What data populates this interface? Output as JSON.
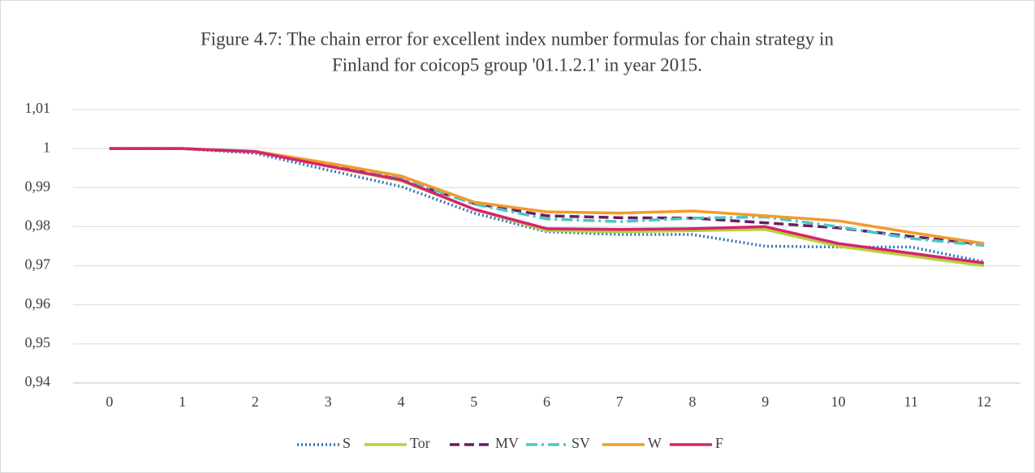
{
  "chart_data": {
    "type": "line",
    "title_lines": [
      "Figure 4.7: The chain error for excellent index number formulas for chain strategy in",
      "Finland for coicop5 group '01.1.2.1' in year 2015."
    ],
    "categories": [
      "0",
      "1",
      "2",
      "3",
      "4",
      "5",
      "6",
      "7",
      "8",
      "9",
      "10",
      "11",
      "12"
    ],
    "ylim": [
      0.94,
      1.01
    ],
    "yticks": [
      {
        "value": 0.94,
        "label": "0,94"
      },
      {
        "value": 0.95,
        "label": "0,95"
      },
      {
        "value": 0.96,
        "label": "0,96"
      },
      {
        "value": 0.97,
        "label": "0,97"
      },
      {
        "value": 0.98,
        "label": "0,98"
      },
      {
        "value": 0.99,
        "label": "0,99"
      },
      1,
      {
        "value": 1.01,
        "label": "1,01"
      }
    ],
    "grid": true,
    "legend": "bottom",
    "series": [
      {
        "name": "S",
        "color": "#2e75b6",
        "dash": "dotted",
        "values": [
          1,
          1,
          0.9988,
          0.9945,
          0.9903,
          0.9835,
          0.9787,
          0.978,
          0.978,
          0.975,
          0.9748,
          0.9748,
          0.971
        ]
      },
      {
        "name": "Tor",
        "color": "#b4d23c",
        "dash": "solid",
        "values": [
          1,
          1,
          0.9992,
          0.9955,
          0.9918,
          0.9845,
          0.979,
          0.9787,
          0.979,
          0.9793,
          0.975,
          0.9725,
          0.97
        ]
      },
      {
        "name": "MV",
        "color": "#6a1c63",
        "dash": "dashed",
        "values": [
          1,
          1,
          0.9992,
          0.996,
          0.992,
          0.986,
          0.9828,
          0.9823,
          0.9822,
          0.981,
          0.9797,
          0.9775,
          0.9755
        ]
      },
      {
        "name": "SV",
        "color": "#4bc6c4",
        "dash": "dashdot",
        "values": [
          1,
          1,
          0.9993,
          0.996,
          0.9925,
          0.9858,
          0.982,
          0.9813,
          0.9822,
          0.9825,
          0.98,
          0.977,
          0.9752
        ]
      },
      {
        "name": "W",
        "color": "#f39a2b",
        "dash": "solid",
        "values": [
          1,
          1,
          0.9993,
          0.9963,
          0.993,
          0.9863,
          0.9838,
          0.9835,
          0.984,
          0.9828,
          0.9815,
          0.9785,
          0.9757
        ]
      },
      {
        "name": "F",
        "color": "#d6246e",
        "dash": "solid",
        "values": [
          1,
          1,
          0.9992,
          0.9955,
          0.992,
          0.9845,
          0.9795,
          0.9793,
          0.9795,
          0.98,
          0.9757,
          0.9732,
          0.9707
        ]
      }
    ]
  }
}
